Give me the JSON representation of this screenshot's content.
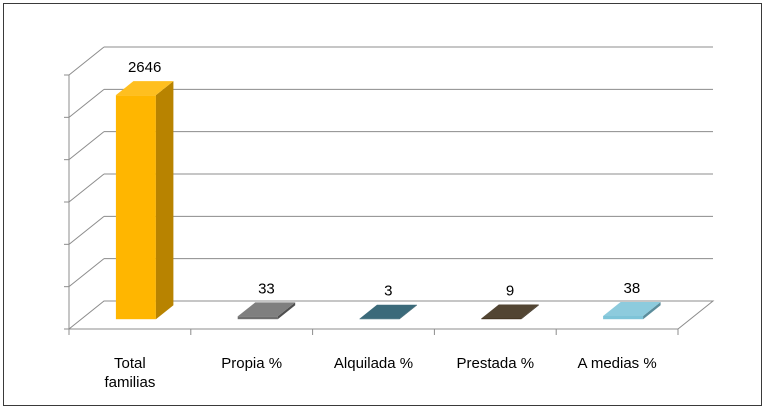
{
  "chart_data": {
    "type": "bar",
    "style": "3d-column",
    "categories": [
      "Total\nfamilias",
      "Propia %",
      "Alquilada %",
      "Prestada %",
      "A medias %"
    ],
    "values": [
      2646,
      33,
      3,
      9,
      38
    ],
    "data_labels": [
      "2646",
      "33",
      "3",
      "9",
      "38"
    ],
    "colors": [
      "#FFB600",
      "#6E6E6E",
      "#205668",
      "#3A2C17",
      "#7EC4D8"
    ],
    "ylim": [
      0,
      3000
    ],
    "y_gridlines": 6,
    "grid": true,
    "legend": "none",
    "title": "",
    "xlabel": "",
    "ylabel": ""
  }
}
